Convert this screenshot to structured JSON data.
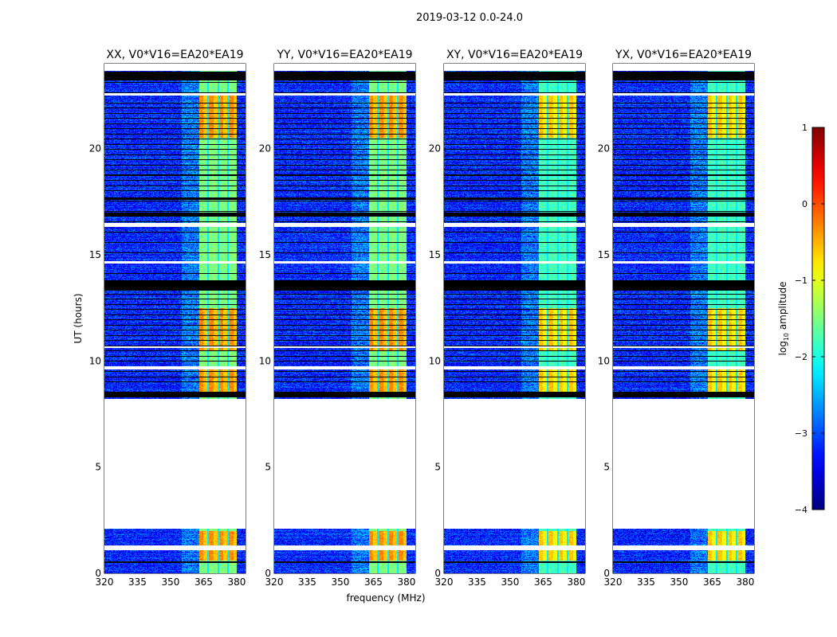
{
  "chart_data": {
    "type": "heatmap",
    "suptitle": "2019-03-12 0.0-24.0",
    "panels": [
      {
        "title": "XX, V0*V16=EA20*EA19"
      },
      {
        "title": "YY, V0*V16=EA20*EA19"
      },
      {
        "title": "XY, V0*V16=EA20*EA19"
      },
      {
        "title": "YX, V0*V16=EA20*EA19"
      }
    ],
    "xlabel": "frequency (MHz)",
    "ylabel": "UT (hours)",
    "xlim": [
      320,
      384
    ],
    "ylim": [
      0,
      24
    ],
    "xticks": [
      "320",
      "335",
      "350",
      "365",
      "380"
    ],
    "xtick_values": [
      320,
      335,
      350,
      365,
      380
    ],
    "yticks": [
      "0",
      "5",
      "10",
      "15",
      "20"
    ],
    "ytick_values": [
      0,
      5,
      10,
      15,
      20
    ],
    "colorbar": {
      "label": "log10 amplitude",
      "range": [
        -4,
        1
      ],
      "ticks": [
        "1",
        "0",
        "−1",
        "−2",
        "−3",
        "−4"
      ],
      "tick_values": [
        1,
        0,
        -1,
        -2,
        -3,
        -4
      ],
      "colormap": "jet"
    },
    "background_level": -3.2,
    "bright_band_mhz": [
      363,
      380
    ],
    "bright_band_level": -1.5,
    "strong_periods_hours": [
      [
        0.6,
        2.0
      ],
      [
        8.4,
        9.6
      ],
      [
        10.5,
        12.5
      ],
      [
        20.5,
        22.5
      ]
    ],
    "data_gaps_hours": [
      [
        2.1,
        8.2
      ],
      [
        1.1,
        1.3
      ],
      [
        22.5,
        22.6
      ],
      [
        16.3,
        16.5
      ],
      [
        14.6,
        14.7
      ],
      [
        10.6,
        10.7
      ],
      [
        9.6,
        9.75
      ]
    ],
    "flagged_rows_hours": [
      [
        23.2,
        23.6
      ],
      [
        16.8,
        17.0
      ],
      [
        13.3,
        13.8
      ],
      [
        8.3,
        8.5
      ],
      [
        0.5,
        0.55
      ],
      [
        17.6,
        17.7
      ],
      [
        18.7,
        18.8
      ]
    ]
  }
}
